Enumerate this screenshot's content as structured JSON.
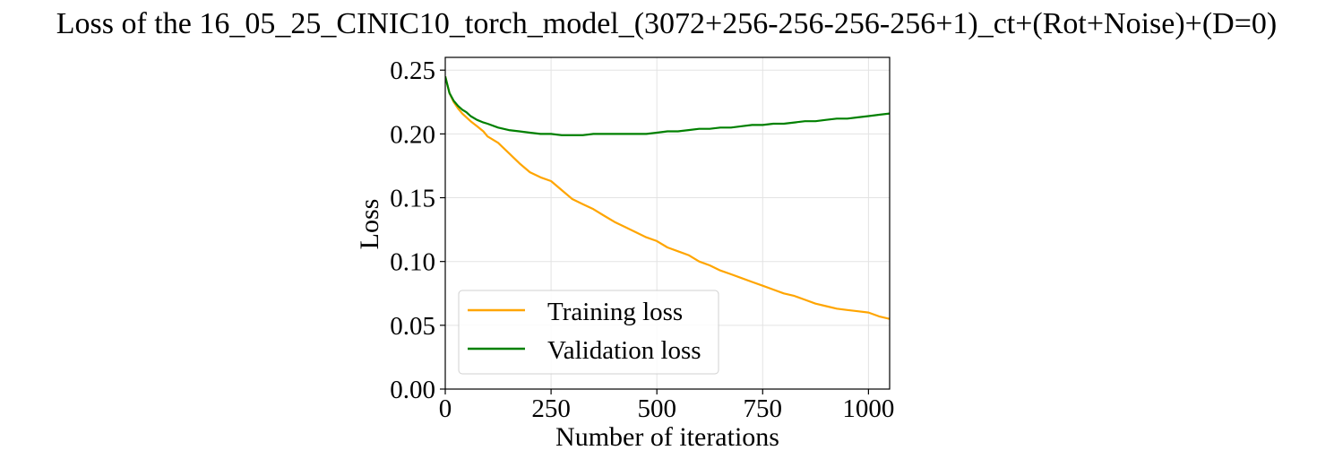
{
  "chart_data": {
    "type": "line",
    "title": "Loss of the 16_05_25_CINIC10_torch_model_(3072+256-256-256-256+1)_ct+(Rot+Noise)+(D=0)",
    "xlabel": "Number of iterations",
    "ylabel": "Loss",
    "xlim": [
      0,
      1050
    ],
    "ylim": [
      0,
      0.26
    ],
    "xticks": [
      0,
      250,
      500,
      750,
      1000
    ],
    "xtick_labels": [
      "0",
      "250",
      "500",
      "750",
      "1000"
    ],
    "yticks": [
      0,
      0.05,
      0.1,
      0.15,
      0.2,
      0.25
    ],
    "ytick_labels": [
      "0.00",
      "0.05",
      "0.10",
      "0.15",
      "0.20",
      "0.25"
    ],
    "grid": true,
    "legend_position": "lower-left",
    "series": [
      {
        "name": "Training loss",
        "color": "#ffa500",
        "x": [
          0,
          10,
          20,
          30,
          40,
          50,
          60,
          75,
          90,
          100,
          125,
          150,
          175,
          200,
          225,
          250,
          275,
          300,
          325,
          350,
          375,
          400,
          425,
          450,
          475,
          500,
          525,
          550,
          575,
          600,
          625,
          650,
          675,
          700,
          725,
          750,
          775,
          800,
          825,
          850,
          875,
          900,
          925,
          950,
          975,
          1000,
          1025,
          1050
        ],
        "y": [
          0.245,
          0.232,
          0.225,
          0.22,
          0.216,
          0.213,
          0.21,
          0.206,
          0.202,
          0.198,
          0.193,
          0.185,
          0.177,
          0.17,
          0.166,
          0.163,
          0.156,
          0.149,
          0.145,
          0.141,
          0.136,
          0.131,
          0.127,
          0.123,
          0.119,
          0.116,
          0.111,
          0.108,
          0.105,
          0.1,
          0.097,
          0.093,
          0.09,
          0.087,
          0.084,
          0.081,
          0.078,
          0.075,
          0.073,
          0.07,
          0.067,
          0.065,
          0.063,
          0.062,
          0.061,
          0.06,
          0.057,
          0.055
        ]
      },
      {
        "name": "Validation loss",
        "color": "#008000",
        "x": [
          0,
          10,
          20,
          30,
          40,
          50,
          60,
          75,
          90,
          100,
          125,
          150,
          175,
          200,
          225,
          250,
          275,
          300,
          325,
          350,
          375,
          400,
          425,
          450,
          475,
          500,
          525,
          550,
          575,
          600,
          625,
          650,
          675,
          700,
          725,
          750,
          775,
          800,
          825,
          850,
          875,
          900,
          925,
          950,
          975,
          1000,
          1025,
          1050
        ],
        "y": [
          0.245,
          0.232,
          0.226,
          0.222,
          0.219,
          0.217,
          0.214,
          0.211,
          0.209,
          0.208,
          0.205,
          0.203,
          0.202,
          0.201,
          0.2,
          0.2,
          0.199,
          0.199,
          0.199,
          0.2,
          0.2,
          0.2,
          0.2,
          0.2,
          0.2,
          0.201,
          0.202,
          0.202,
          0.203,
          0.204,
          0.204,
          0.205,
          0.205,
          0.206,
          0.207,
          0.207,
          0.208,
          0.208,
          0.209,
          0.21,
          0.21,
          0.211,
          0.212,
          0.212,
          0.213,
          0.214,
          0.215,
          0.216
        ]
      }
    ]
  }
}
